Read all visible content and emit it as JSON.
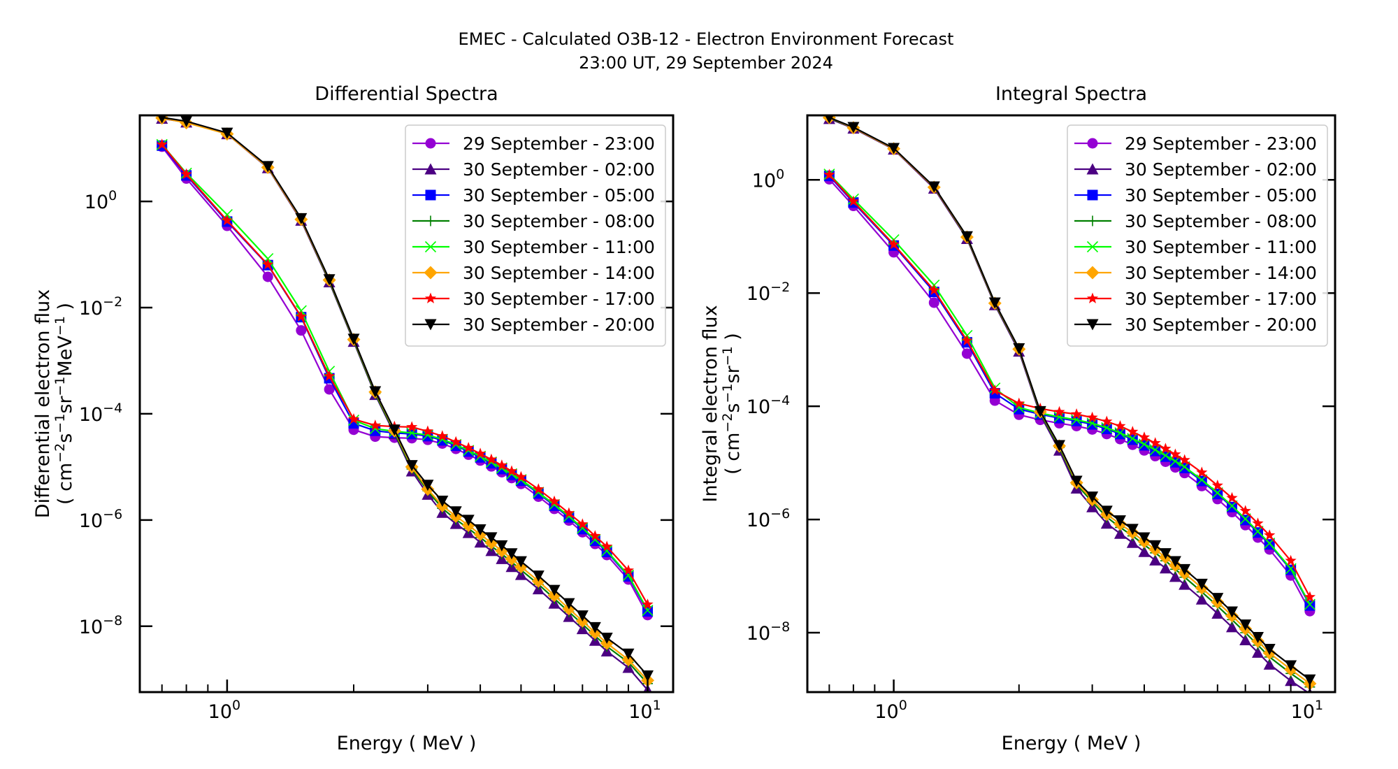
{
  "figure": {
    "title_line1": "EMEC - Calculated O3B-12 - Electron Environment Forecast",
    "title_line2": "23:00 UT, 29 September 2024"
  },
  "chart_data": [
    {
      "type": "line",
      "title": "Differential Spectra",
      "xlabel": "Energy ( MeV )",
      "ylabel_line1": "Differential electron flux",
      "ylabel_line2_parts": [
        "( cm",
        "−2",
        "s",
        "−1",
        "sr",
        "−1",
        "MeV",
        "−1",
        " )"
      ],
      "xscale": "log",
      "yscale": "log",
      "xlim": [
        0.62,
        11.5
      ],
      "ylim_log10": [
        -9.24,
        1.62
      ],
      "xticks": [
        {
          "value": 1,
          "label": "10",
          "exp": "0"
        },
        {
          "value": 10,
          "label": "10",
          "exp": "1"
        }
      ],
      "yticks": [
        {
          "log10": 0,
          "label": "10",
          "exp": "0"
        },
        {
          "log10": -2,
          "label": "10",
          "exp": "−2"
        },
        {
          "log10": -4,
          "label": "10",
          "exp": "−4"
        },
        {
          "log10": -6,
          "label": "10",
          "exp": "−6"
        },
        {
          "log10": -8,
          "label": "10",
          "exp": "−8"
        }
      ],
      "legend_position": "top-right",
      "x": [
        0.7,
        0.8,
        1.0,
        1.25,
        1.5,
        1.75,
        2.0,
        2.25,
        2.5,
        2.75,
        3.0,
        3.25,
        3.5,
        3.75,
        4.0,
        4.25,
        4.5,
        4.75,
        5.0,
        5.5,
        6.0,
        6.5,
        7.0,
        7.5,
        8.0,
        9.0,
        10.0
      ],
      "series": [
        {
          "name": "29 September - 23:00",
          "color": "#9400d3",
          "marker": "circle",
          "log10_values": [
            1.03,
            0.43,
            -0.46,
            -1.42,
            -2.43,
            -3.54,
            -4.3,
            -4.43,
            -4.45,
            -4.46,
            -4.49,
            -4.56,
            -4.66,
            -4.77,
            -4.88,
            -4.99,
            -5.1,
            -5.21,
            -5.32,
            -5.56,
            -5.79,
            -6.01,
            -6.23,
            -6.45,
            -6.66,
            -7.12,
            -7.79
          ]
        },
        {
          "name": "30 September - 02:00",
          "color": "#4b0082",
          "marker": "triangle-up",
          "log10_values": [
            1.56,
            1.49,
            1.27,
            0.63,
            -0.36,
            -1.52,
            -2.64,
            -3.64,
            -4.38,
            -5.08,
            -5.52,
            -5.86,
            -6.07,
            -6.24,
            -6.42,
            -6.58,
            -6.73,
            -6.88,
            -7.03,
            -7.3,
            -7.57,
            -7.82,
            -8.05,
            -8.27,
            -8.47,
            -8.78,
            -9.2
          ]
        },
        {
          "name": "30 September - 05:00",
          "color": "#0000ff",
          "marker": "square",
          "log10_values": [
            1.05,
            0.49,
            -0.38,
            -1.2,
            -2.18,
            -3.33,
            -4.18,
            -4.32,
            -4.36,
            -4.38,
            -4.42,
            -4.5,
            -4.6,
            -4.71,
            -4.82,
            -4.93,
            -5.04,
            -5.15,
            -5.26,
            -5.5,
            -5.73,
            -5.95,
            -6.17,
            -6.39,
            -6.6,
            -7.06,
            -7.72
          ]
        },
        {
          "name": "30 September - 08:00",
          "color": "#008000",
          "marker": "plus",
          "log10_values": [
            1.57,
            1.5,
            1.28,
            0.64,
            -0.34,
            -1.5,
            -2.62,
            -3.62,
            -4.35,
            -5.04,
            -5.45,
            -5.78,
            -5.99,
            -6.16,
            -6.33,
            -6.49,
            -6.64,
            -6.79,
            -6.94,
            -7.21,
            -7.48,
            -7.73,
            -7.96,
            -8.18,
            -8.38,
            -8.68,
            -9.08
          ]
        },
        {
          "name": "30 September - 11:00",
          "color": "#00ff00",
          "marker": "x",
          "log10_values": [
            1.07,
            0.53,
            -0.25,
            -1.08,
            -2.06,
            -3.2,
            -4.12,
            -4.28,
            -4.33,
            -4.36,
            -4.4,
            -4.48,
            -4.58,
            -4.69,
            -4.8,
            -4.91,
            -5.02,
            -5.13,
            -5.24,
            -5.48,
            -5.71,
            -5.93,
            -6.15,
            -6.37,
            -6.58,
            -7.04,
            -7.7
          ]
        },
        {
          "name": "30 September - 14:00",
          "color": "#ffa500",
          "marker": "diamond",
          "log10_values": [
            1.57,
            1.48,
            1.27,
            0.64,
            -0.34,
            -1.48,
            -2.6,
            -3.59,
            -4.32,
            -5.0,
            -5.42,
            -5.73,
            -5.93,
            -6.1,
            -6.27,
            -6.43,
            -6.58,
            -6.73,
            -6.88,
            -7.15,
            -7.42,
            -7.67,
            -7.9,
            -8.12,
            -8.32,
            -8.63,
            -9.02
          ]
        },
        {
          "name": "30 September - 17:00",
          "color": "#ff0000",
          "marker": "star",
          "log10_values": [
            1.07,
            0.51,
            -0.36,
            -1.19,
            -2.17,
            -3.29,
            -4.1,
            -4.22,
            -4.24,
            -4.25,
            -4.33,
            -4.42,
            -4.53,
            -4.64,
            -4.75,
            -4.86,
            -4.97,
            -5.08,
            -5.19,
            -5.42,
            -5.65,
            -5.87,
            -6.08,
            -6.3,
            -6.5,
            -6.95,
            -7.59
          ]
        },
        {
          "name": "30 September - 20:00",
          "color": "#000000",
          "marker": "triangle-down",
          "log10_values": [
            1.58,
            1.51,
            1.29,
            0.66,
            -0.32,
            -1.47,
            -2.59,
            -3.58,
            -4.3,
            -4.97,
            -5.34,
            -5.64,
            -5.84,
            -6.0,
            -6.18,
            -6.33,
            -6.48,
            -6.63,
            -6.78,
            -7.05,
            -7.32,
            -7.57,
            -7.8,
            -8.02,
            -8.22,
            -8.52,
            -8.93
          ]
        }
      ]
    },
    {
      "type": "line",
      "title": "Integral Spectra",
      "xlabel": "Energy ( MeV )",
      "ylabel_line1": "Integral electron flux",
      "ylabel_line2_parts": [
        "( cm",
        "−2",
        "s",
        "−1",
        "sr",
        "−1",
        " )",
        "",
        ""
      ],
      "xscale": "log",
      "yscale": "log",
      "xlim": [
        0.62,
        11.5
      ],
      "ylim_log10": [
        -9.05,
        1.14
      ],
      "xticks": [
        {
          "value": 1,
          "label": "10",
          "exp": "0"
        },
        {
          "value": 10,
          "label": "10",
          "exp": "1"
        }
      ],
      "yticks": [
        {
          "log10": 0,
          "label": "10",
          "exp": "0"
        },
        {
          "log10": -2,
          "label": "10",
          "exp": "−2"
        },
        {
          "log10": -4,
          "label": "10",
          "exp": "−4"
        },
        {
          "log10": -6,
          "label": "10",
          "exp": "−6"
        },
        {
          "log10": -8,
          "label": "10",
          "exp": "−8"
        }
      ],
      "legend_position": "top-right",
      "x": [
        0.7,
        0.8,
        1.0,
        1.25,
        1.5,
        1.75,
        2.0,
        2.25,
        2.5,
        2.75,
        3.0,
        3.25,
        3.5,
        3.75,
        4.0,
        4.25,
        4.5,
        4.75,
        5.0,
        5.5,
        6.0,
        6.5,
        7.0,
        7.5,
        8.0,
        9.0,
        10.0
      ],
      "series": [
        {
          "name": "29 September - 23:00",
          "color": "#9400d3",
          "marker": "circle",
          "log10_values": [
            0.01,
            -0.46,
            -1.28,
            -2.17,
            -3.07,
            -3.9,
            -4.15,
            -4.24,
            -4.3,
            -4.35,
            -4.41,
            -4.49,
            -4.58,
            -4.68,
            -4.78,
            -4.88,
            -4.98,
            -5.08,
            -5.18,
            -5.41,
            -5.64,
            -5.87,
            -6.1,
            -6.32,
            -6.53,
            -6.99,
            -7.62
          ]
        },
        {
          "name": "30 September - 02:00",
          "color": "#4b0082",
          "marker": "triangle-up",
          "log10_values": [
            1.08,
            0.91,
            0.54,
            -0.15,
            -1.04,
            -2.21,
            -3.03,
            -4.15,
            -4.78,
            -5.45,
            -5.78,
            -6.07,
            -6.25,
            -6.41,
            -6.57,
            -6.72,
            -6.86,
            -7.01,
            -7.15,
            -7.41,
            -7.66,
            -7.9,
            -8.13,
            -8.35,
            -8.56,
            -8.85,
            -9.08
          ]
        },
        {
          "name": "30 September - 05:00",
          "color": "#0000ff",
          "marker": "square",
          "log10_values": [
            0.07,
            -0.4,
            -1.16,
            -1.98,
            -2.87,
            -3.77,
            -4.05,
            -4.14,
            -4.21,
            -4.26,
            -4.32,
            -4.4,
            -4.49,
            -4.59,
            -4.69,
            -4.79,
            -4.89,
            -4.99,
            -5.09,
            -5.32,
            -5.55,
            -5.78,
            -6.01,
            -6.23,
            -6.44,
            -6.89,
            -7.52
          ]
        },
        {
          "name": "30 September - 08:00",
          "color": "#008000",
          "marker": "plus",
          "log10_values": [
            1.09,
            0.92,
            0.55,
            -0.13,
            -1.02,
            -2.19,
            -3.0,
            -4.12,
            -4.73,
            -5.38,
            -5.69,
            -5.96,
            -6.14,
            -6.29,
            -6.45,
            -6.59,
            -6.73,
            -6.88,
            -7.02,
            -7.28,
            -7.53,
            -7.77,
            -8.0,
            -8.22,
            -8.43,
            -8.72,
            -8.96
          ]
        },
        {
          "name": "30 September - 11:00",
          "color": "#00ff00",
          "marker": "x",
          "log10_values": [
            0.1,
            -0.34,
            -1.06,
            -1.86,
            -2.75,
            -3.68,
            -4.02,
            -4.12,
            -4.19,
            -4.24,
            -4.3,
            -4.38,
            -4.47,
            -4.57,
            -4.67,
            -4.77,
            -4.87,
            -4.97,
            -5.07,
            -5.3,
            -5.53,
            -5.76,
            -5.99,
            -6.21,
            -6.42,
            -6.87,
            -7.5
          ]
        },
        {
          "name": "30 September - 14:00",
          "color": "#ffa500",
          "marker": "diamond",
          "log10_values": [
            1.1,
            0.92,
            0.55,
            -0.13,
            -1.01,
            -2.18,
            -2.99,
            -4.1,
            -4.7,
            -5.35,
            -5.65,
            -5.91,
            -6.08,
            -6.23,
            -6.39,
            -6.53,
            -6.67,
            -6.81,
            -6.95,
            -7.21,
            -7.46,
            -7.7,
            -7.93,
            -8.15,
            -8.36,
            -8.65,
            -8.9
          ]
        },
        {
          "name": "30 September - 17:00",
          "color": "#ff0000",
          "marker": "star",
          "log10_values": [
            0.09,
            -0.38,
            -1.14,
            -1.95,
            -2.84,
            -3.72,
            -3.95,
            -4.04,
            -4.1,
            -4.14,
            -4.2,
            -4.27,
            -4.35,
            -4.45,
            -4.55,
            -4.65,
            -4.75,
            -4.85,
            -4.95,
            -5.17,
            -5.4,
            -5.62,
            -5.85,
            -6.07,
            -6.28,
            -6.73,
            -7.37
          ]
        },
        {
          "name": "30 September - 20:00",
          "color": "#000000",
          "marker": "triangle-down",
          "log10_values": [
            1.1,
            0.93,
            0.56,
            -0.12,
            -1.0,
            -2.17,
            -2.98,
            -4.09,
            -4.69,
            -5.32,
            -5.6,
            -5.85,
            -6.02,
            -6.17,
            -6.32,
            -6.46,
            -6.6,
            -6.74,
            -6.88,
            -7.14,
            -7.39,
            -7.63,
            -7.86,
            -8.08,
            -8.29,
            -8.58,
            -8.83
          ]
        }
      ]
    }
  ]
}
